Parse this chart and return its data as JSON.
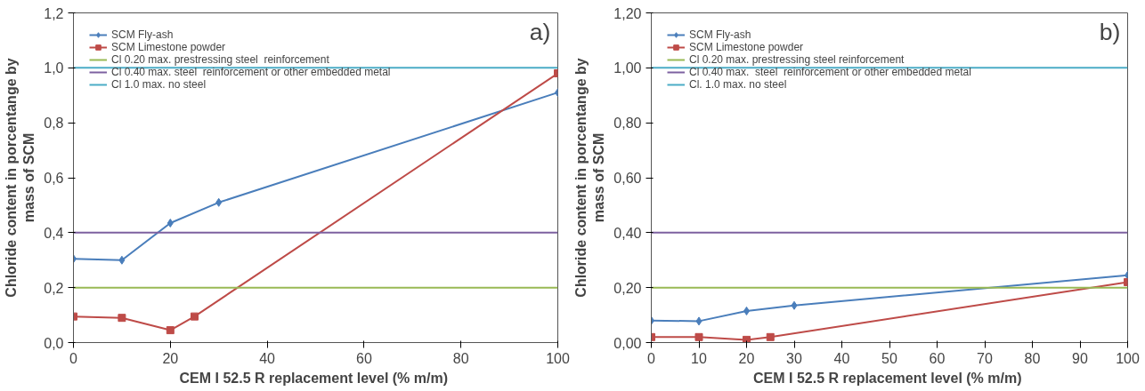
{
  "chart_data": [
    {
      "type": "line",
      "xlabel": "CEM I 52.5 R  replacement level (% m/m)",
      "ylabel": "Chloride content in porcentange by mass of SCM",
      "annotations": [
        "a)"
      ],
      "xlim": [
        0,
        100
      ],
      "xticks": [
        0,
        20,
        40,
        60,
        80,
        100
      ],
      "ylim": [
        0,
        1.2
      ],
      "yticks": [
        {
          "value": 0,
          "label": "0,0"
        },
        {
          "value": 0.2,
          "label": "0,2"
        },
        {
          "value": 0.4,
          "label": "0,4"
        },
        {
          "value": 0.6,
          "label": "0,6"
        },
        {
          "value": 0.8,
          "label": "0,8"
        },
        {
          "value": 1.0,
          "label": "1,0"
        },
        {
          "value": 1.2,
          "label": "1,2"
        }
      ],
      "grid": false,
      "legend": "top left",
      "series": [
        {
          "name": "SCM Fly-ash",
          "color": "#4a7ebb",
          "marker": "diamond",
          "x": [
            0,
            10,
            20,
            30,
            100
          ],
          "values": [
            0.305,
            0.3,
            0.435,
            0.51,
            0.91
          ]
        },
        {
          "name": "SCM Limestone powder",
          "color": "#be4b48",
          "marker": "square",
          "x": [
            0,
            10,
            20,
            25,
            100
          ],
          "values": [
            0.095,
            0.09,
            0.045,
            0.095,
            0.98
          ]
        },
        {
          "name": "Cl 0.20 max. prestressing steel  reinforcement",
          "color": "#98b954",
          "marker": "none",
          "x": [
            0,
            100
          ],
          "values": [
            0.2,
            0.2
          ]
        },
        {
          "name": "Cl 0.40 max. steel  reinforcement or other embedded metal",
          "color": "#7d60a0",
          "marker": "none",
          "x": [
            0,
            100
          ],
          "values": [
            0.4,
            0.4
          ]
        },
        {
          "name": "Cl 1.0 max. no steel",
          "color": "#4bacc6",
          "marker": "none",
          "x": [
            0,
            100
          ],
          "values": [
            1.0,
            1.0
          ]
        }
      ]
    },
    {
      "type": "line",
      "xlabel": "CEM I 52.5 R  replacement level (% m/m)",
      "ylabel": "Chloride content in porcentange by mass of SCM",
      "annotations": [
        "b)"
      ],
      "xlim": [
        0,
        100
      ],
      "xticks": [
        0,
        10,
        20,
        30,
        40,
        50,
        60,
        70,
        80,
        90,
        100
      ],
      "ylim": [
        0,
        1.2
      ],
      "yticks": [
        {
          "value": 0,
          "label": "0,00"
        },
        {
          "value": 0.2,
          "label": "0,20"
        },
        {
          "value": 0.4,
          "label": "0,40"
        },
        {
          "value": 0.6,
          "label": "0,60"
        },
        {
          "value": 0.8,
          "label": "0,80"
        },
        {
          "value": 1.0,
          "label": "1,00"
        },
        {
          "value": 1.2,
          "label": "1,20"
        }
      ],
      "grid": false,
      "legend": "top left",
      "series": [
        {
          "name": "SCM Fly-ash",
          "color": "#4a7ebb",
          "marker": "diamond",
          "x": [
            0,
            10,
            20,
            30,
            100
          ],
          "values": [
            0.08,
            0.078,
            0.115,
            0.135,
            0.245
          ]
        },
        {
          "name": "SCM Limestone powder",
          "color": "#be4b48",
          "marker": "square",
          "x": [
            0,
            10,
            20,
            25,
            100
          ],
          "values": [
            0.02,
            0.02,
            0.01,
            0.02,
            0.22
          ]
        },
        {
          "name": "Cl 0.20 max. prestressing steel reinforcement",
          "color": "#98b954",
          "marker": "none",
          "x": [
            0,
            100
          ],
          "values": [
            0.2,
            0.2
          ]
        },
        {
          "name": "Cl 0.40 max.  steel  reinforcement or other embedded metal",
          "color": "#7d60a0",
          "marker": "none",
          "x": [
            0,
            100
          ],
          "values": [
            0.4,
            0.4
          ]
        },
        {
          "name": "Cl. 1.0 max. no steel",
          "color": "#4bacc6",
          "marker": "none",
          "x": [
            0,
            100
          ],
          "values": [
            1.0,
            1.0
          ]
        }
      ]
    }
  ]
}
